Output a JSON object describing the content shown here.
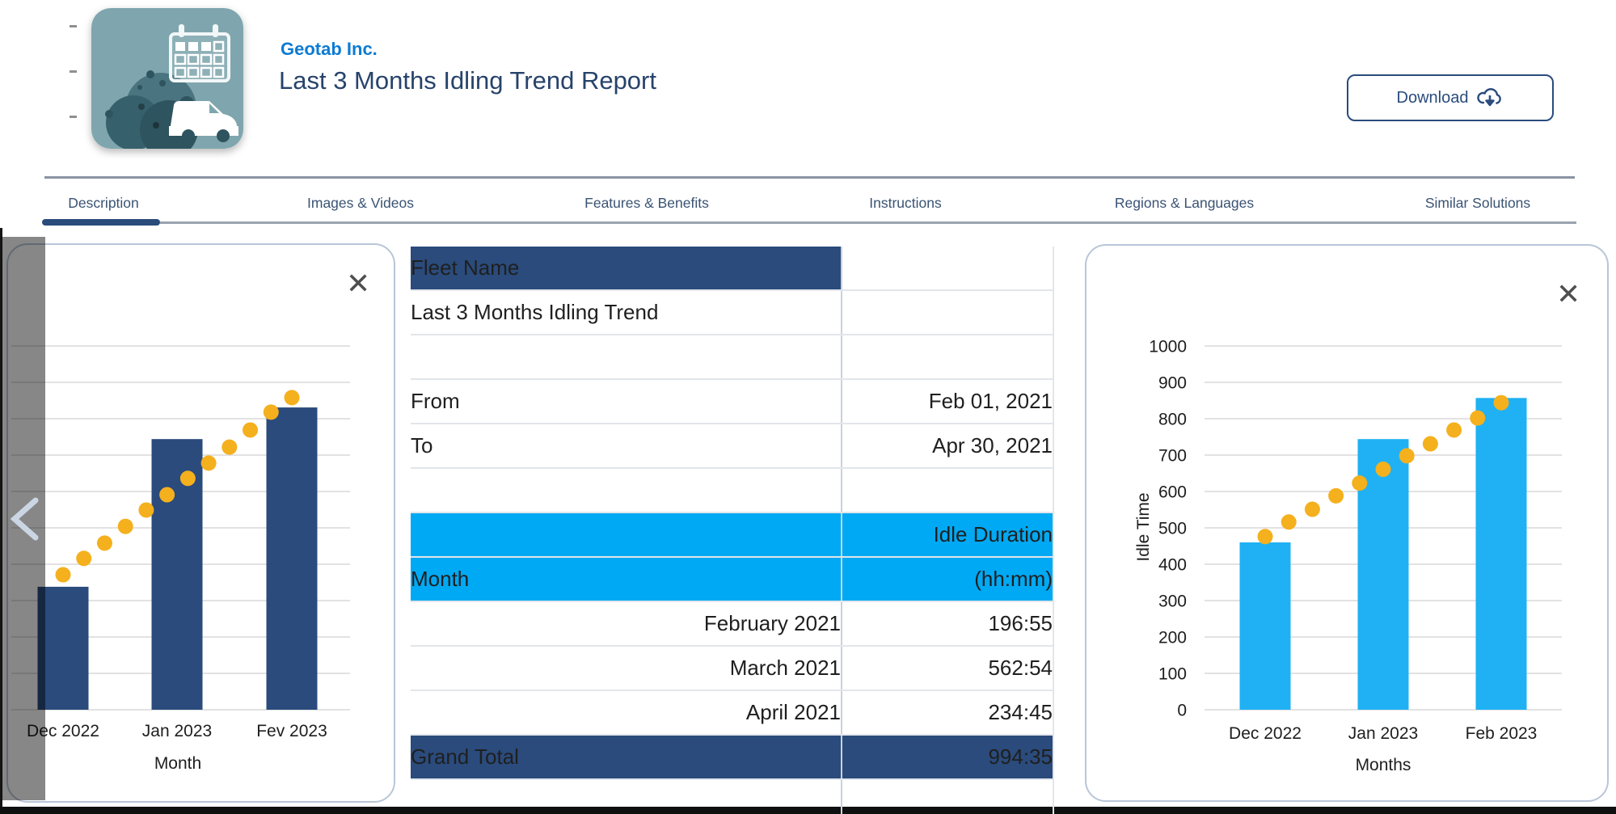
{
  "header": {
    "vendor": "Geotab Inc.",
    "title": "Last 3 Months Idling Trend Report",
    "download_label": "Download"
  },
  "tabs": {
    "items": [
      {
        "label": "Description",
        "active": true
      },
      {
        "label": "Images & Videos",
        "active": false
      },
      {
        "label": "Features & Benefits",
        "active": false
      },
      {
        "label": "Instructions",
        "active": false
      },
      {
        "label": "Regions & Languages",
        "active": false
      },
      {
        "label": "Similar Solutions",
        "active": false
      }
    ]
  },
  "cards": {
    "close_symbol": "✕"
  },
  "fleet_table": {
    "header": "Fleet Name",
    "fleet_name": "Last 3 Months Idling Trend",
    "from_label": "From",
    "from_value": "Feb 01, 2021",
    "to_label": "To",
    "to_value": "Apr 30, 2021",
    "duration_header_line1": "Idle Duration",
    "duration_header_line2": "(hh:mm)",
    "month_header": "Month",
    "rows": [
      [
        "February 2021",
        "196:55"
      ],
      [
        "March 2021",
        "562:54"
      ],
      [
        "April 2021",
        "234:45"
      ]
    ],
    "grand_total_label": "Grand Total",
    "grand_total_value": "994:35",
    "colors": {
      "navy": "#2a4b7c",
      "cyan": "#00a9f4"
    }
  },
  "chart_data": [
    {
      "type": "bar",
      "title": "",
      "categories": [
        "Dec 2022",
        "Jan 2023",
        "Fev 2023"
      ],
      "values": [
        338,
        744,
        831
      ],
      "trend": [
        371,
        416,
        458,
        504,
        549,
        591,
        636,
        678,
        722,
        769,
        818,
        858
      ],
      "xlabel": "Month",
      "ylabel": "",
      "ylim": [
        0,
        1000
      ],
      "ytick": 100,
      "y_labels_visible": false,
      "grid": true,
      "legend": "none",
      "bar_color": "#2a4b7c",
      "dot_color": "#f4b01d"
    },
    {
      "type": "bar",
      "title": "",
      "categories": [
        "Dec 2022",
        "Jan 2023",
        "Feb 2023"
      ],
      "values": [
        460,
        744,
        857
      ],
      "trend": [
        476,
        516,
        551,
        588,
        623,
        661,
        698,
        731,
        769,
        802,
        844
      ],
      "xlabel": "Months",
      "ylabel": "Idle Time",
      "ylim": [
        0,
        1000
      ],
      "ytick": 100,
      "y_labels_visible": true,
      "grid": true,
      "legend": "none",
      "bar_color": "#1fb1f3",
      "dot_color": "#f4b01d"
    }
  ]
}
